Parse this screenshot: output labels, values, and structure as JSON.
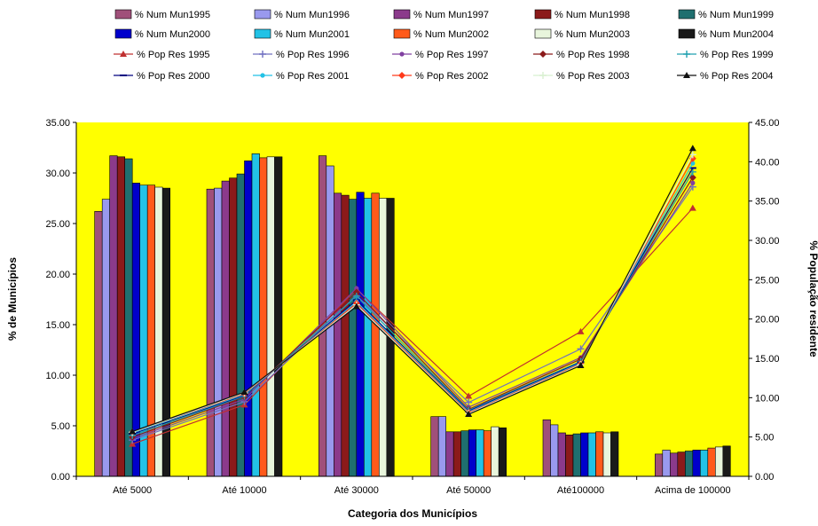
{
  "chart_data": {
    "type": "bar",
    "categories": [
      "Até 5000",
      "Até 10000",
      "Até 30000",
      "Até 50000",
      "Até100000",
      "Acima de 100000"
    ],
    "xlabel": "Categoria dos Municípios",
    "ylabel": "% de Municípios",
    "y2label": "% População residente",
    "ylim": [
      0,
      35
    ],
    "yticks": [
      "0.00",
      "5.00",
      "10.00",
      "15.00",
      "20.00",
      "25.00",
      "30.00",
      "35.00"
    ],
    "y2lim": [
      0,
      45
    ],
    "y2ticks": [
      "0.00",
      "5.00",
      "10.00",
      "15.00",
      "20.00",
      "25.00",
      "30.00",
      "35.00",
      "40.00",
      "45.00"
    ],
    "plot_background": "#ffff00",
    "legend_position": "top",
    "grid": false,
    "bar_series": [
      {
        "name": "% Num Mun1995",
        "color": "#a0507a",
        "values": [
          26.2,
          28.4,
          31.7,
          5.9,
          5.6,
          2.2
        ]
      },
      {
        "name": "% Num Mun1996",
        "color": "#9999ee",
        "values": [
          27.4,
          28.5,
          30.7,
          5.9,
          5.1,
          2.6
        ]
      },
      {
        "name": "% Num Mun1997",
        "color": "#8b3a8b",
        "values": [
          31.7,
          29.2,
          28.0,
          4.4,
          4.3,
          2.3
        ]
      },
      {
        "name": "% Num Mun1998",
        "color": "#8b1a1a",
        "values": [
          31.6,
          29.5,
          27.8,
          4.4,
          4.1,
          2.4
        ]
      },
      {
        "name": "% Num Mun1999",
        "color": "#1f6f6f",
        "values": [
          31.4,
          29.9,
          27.4,
          4.5,
          4.2,
          2.5
        ]
      },
      {
        "name": "% Num Mun2000",
        "color": "#0000cc",
        "values": [
          29.0,
          31.2,
          28.1,
          4.6,
          4.3,
          2.6
        ]
      },
      {
        "name": "% Num Mun2001",
        "color": "#22c2e6",
        "values": [
          28.8,
          31.9,
          27.5,
          4.6,
          4.3,
          2.6
        ]
      },
      {
        "name": "% Num Mun2002",
        "color": "#ff5a1a",
        "values": [
          28.8,
          31.5,
          28.0,
          4.5,
          4.4,
          2.8
        ]
      },
      {
        "name": "% Num Mun2003",
        "color": "#e8f5dc",
        "values": [
          28.6,
          31.6,
          27.5,
          4.9,
          4.3,
          2.9
        ]
      },
      {
        "name": "% Num Mun2004",
        "color": "#1a1a1a",
        "values": [
          28.5,
          31.6,
          27.5,
          4.8,
          4.4,
          3.0
        ]
      }
    ],
    "line_series": [
      {
        "name": "% Pop Res 1995",
        "color": "#c03030",
        "marker": "triangle",
        "values": [
          4.1,
          9.1,
          23.8,
          10.2,
          18.4,
          34.1
        ]
      },
      {
        "name": "% Pop Res 1996",
        "color": "#7070c0",
        "marker": "plus",
        "values": [
          4.6,
          9.5,
          23.0,
          9.4,
          16.2,
          36.8
        ]
      },
      {
        "name": "% Pop Res 1997",
        "color": "#8040a0",
        "marker": "dot",
        "values": [
          4.8,
          9.8,
          23.9,
          8.8,
          15.1,
          37.3
        ]
      },
      {
        "name": "% Pop Res 1998",
        "color": "#8b1a1a",
        "marker": "diamond",
        "values": [
          5.0,
          10.1,
          23.4,
          8.5,
          14.9,
          38.0
        ]
      },
      {
        "name": "% Pop Res 1999",
        "color": "#20a0b0",
        "marker": "plus",
        "values": [
          5.2,
          10.2,
          22.9,
          8.4,
          14.6,
          38.7
        ]
      },
      {
        "name": "% Pop Res 2000",
        "color": "#000080",
        "marker": "dash",
        "values": [
          5.4,
          10.3,
          22.4,
          8.3,
          14.5,
          39.2
        ]
      },
      {
        "name": "% Pop Res 2001",
        "color": "#22c2e6",
        "marker": "dot",
        "values": [
          5.5,
          10.4,
          22.2,
          8.2,
          14.4,
          39.8
        ]
      },
      {
        "name": "% Pop Res 2002",
        "color": "#ff3a1a",
        "marker": "diamond",
        "values": [
          5.6,
          10.5,
          22.0,
          8.1,
          14.3,
          40.4
        ]
      },
      {
        "name": "% Pop Res 2003",
        "color": "#d8f0d0",
        "marker": "plus",
        "values": [
          5.6,
          10.6,
          21.8,
          8.0,
          14.2,
          40.9
        ]
      },
      {
        "name": "% Pop Res 2004",
        "color": "#101010",
        "marker": "triangle",
        "values": [
          5.7,
          10.7,
          21.6,
          7.9,
          14.1,
          41.7
        ]
      }
    ]
  }
}
